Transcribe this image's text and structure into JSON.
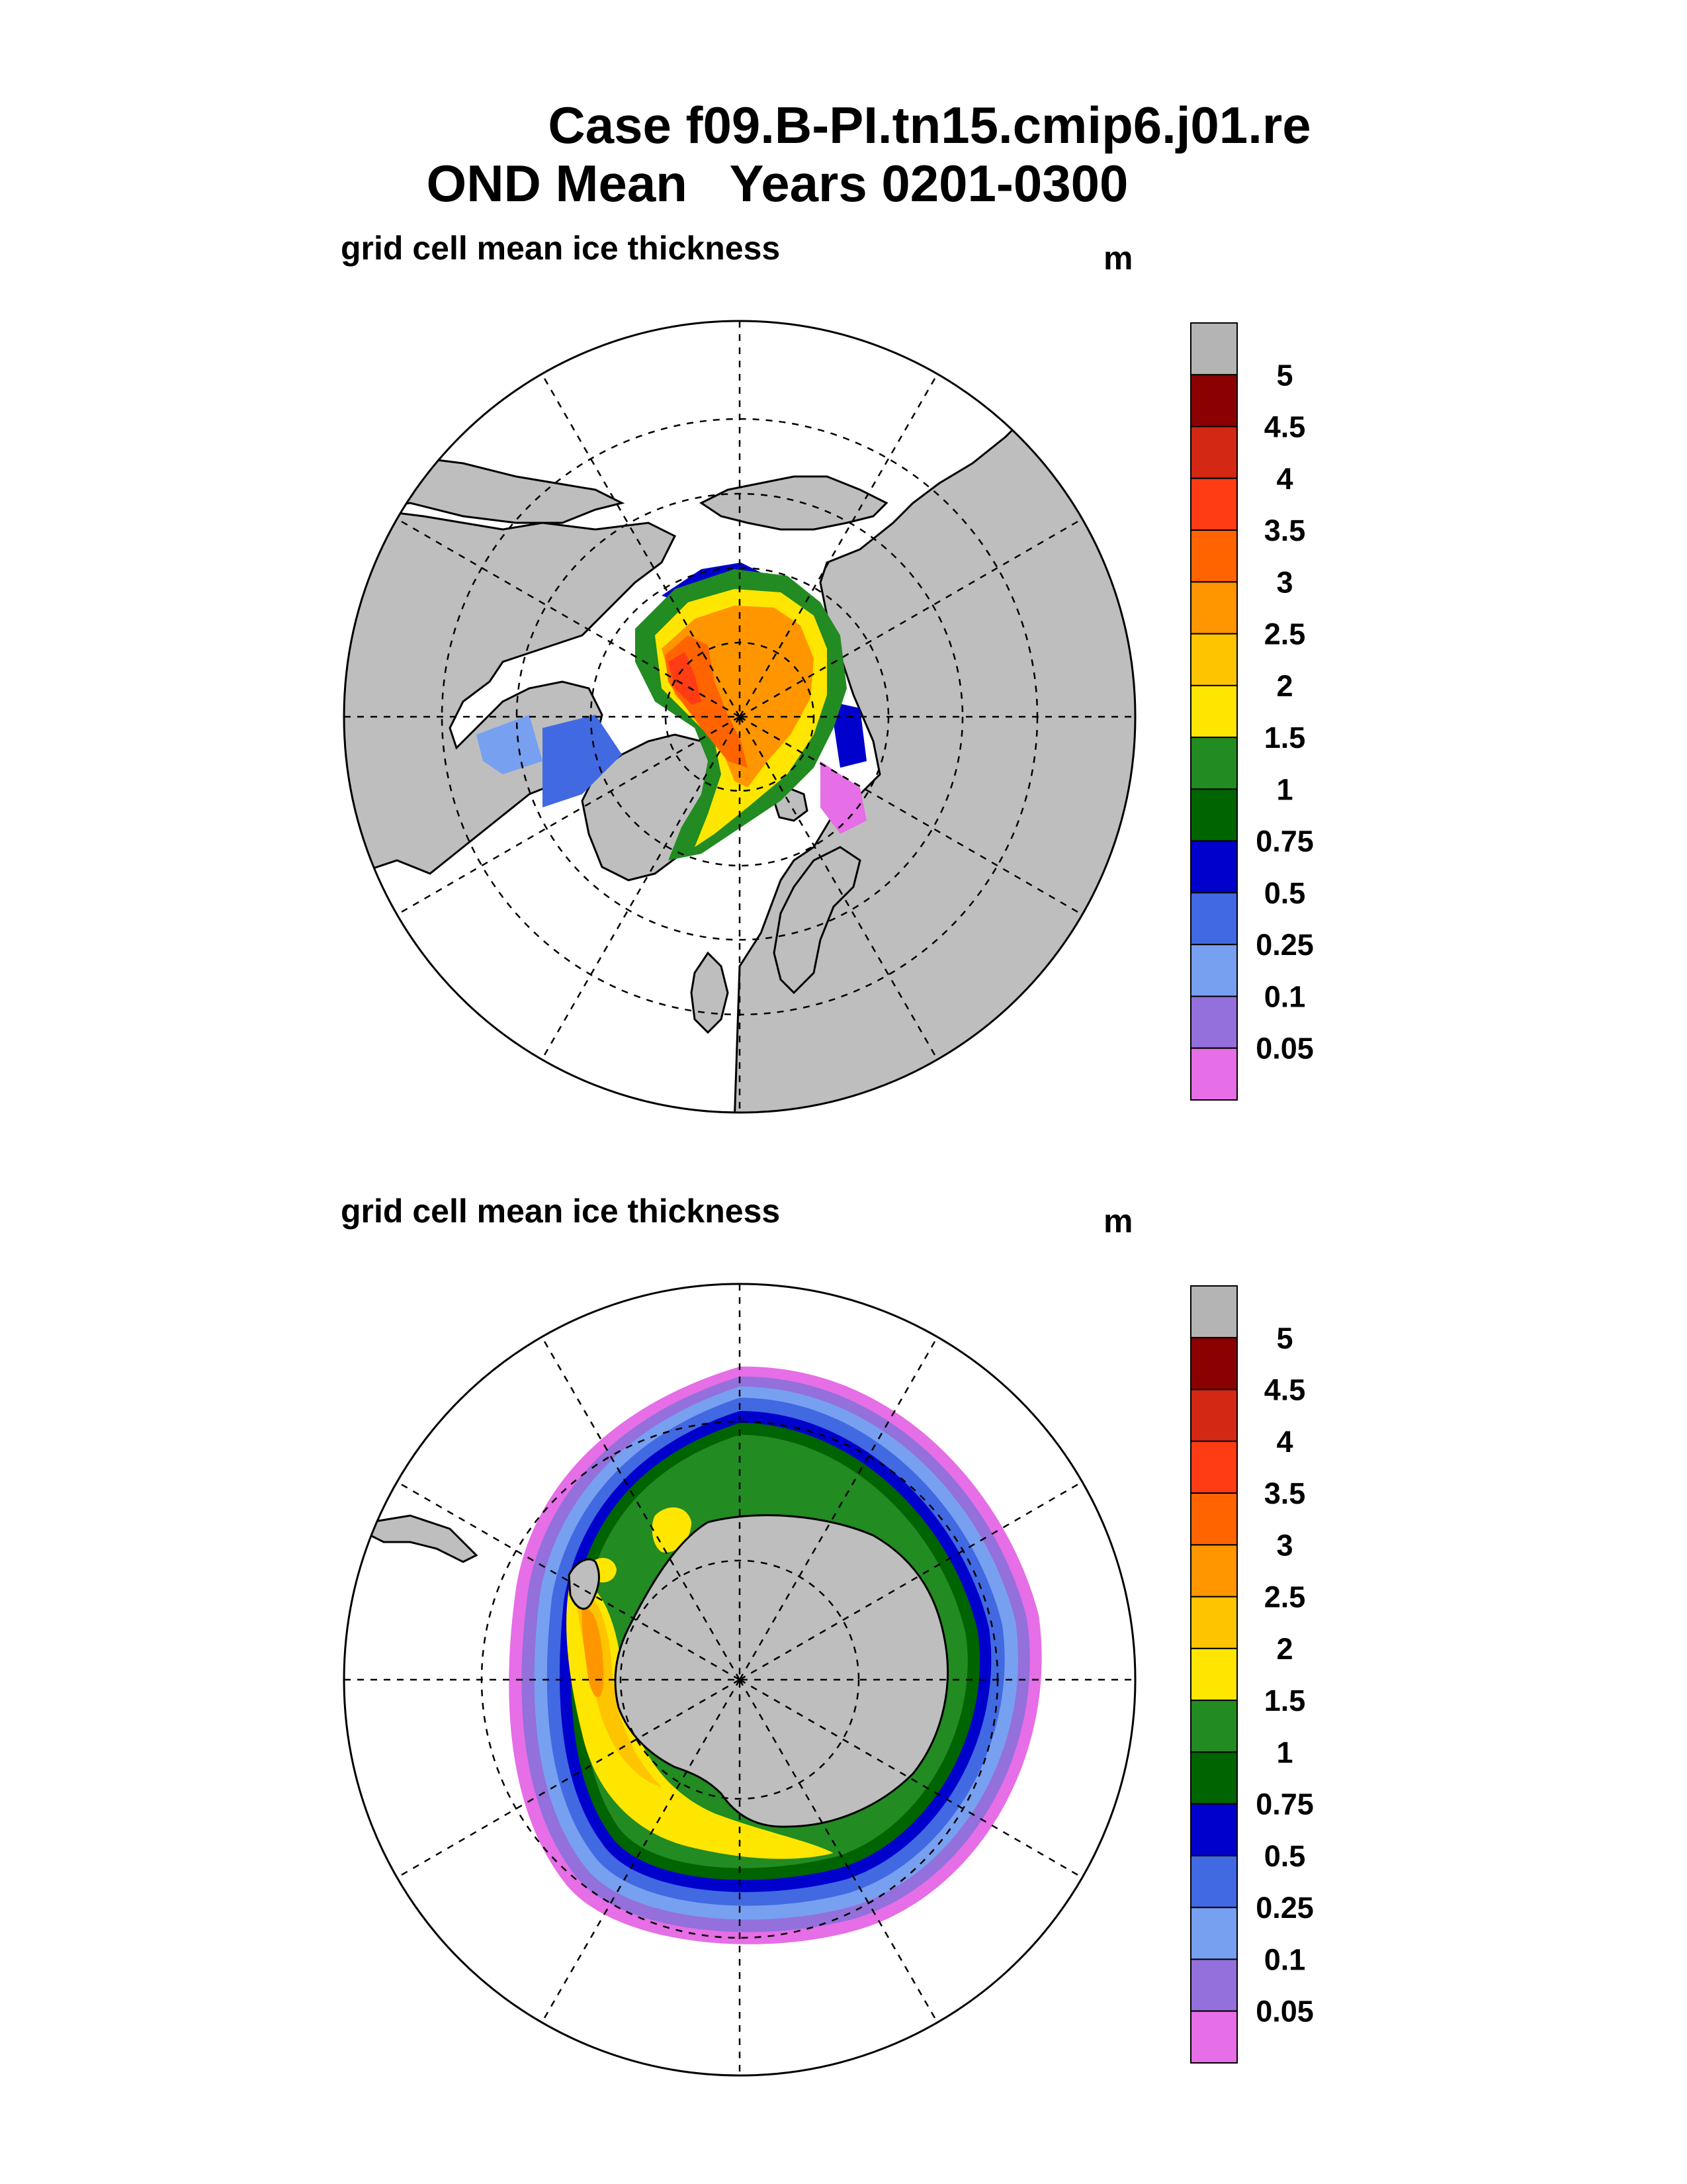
{
  "title_line1": "Case f09.B-PI.tn15.cmip6.j01.re",
  "title_line2": "OND Mean   Years 0201-0300",
  "panels": [
    {
      "id": "north",
      "subtitle": "grid cell mean ice thickness",
      "units": "m"
    },
    {
      "id": "south",
      "subtitle": "grid cell mean ice thickness",
      "units": "m"
    }
  ],
  "colorbar": {
    "labels": [
      "5",
      "4.5",
      "4",
      "3.5",
      "3",
      "2.5",
      "2",
      "1.5",
      "1",
      "0.75",
      "0.5",
      "0.25",
      "0.1",
      "0.05"
    ],
    "colors_top_to_bottom": [
      "#b4b4b4",
      "#8b0000",
      "#d22814",
      "#ff3c14",
      "#ff6400",
      "#ff9600",
      "#ffc400",
      "#ffe600",
      "#228b22",
      "#006400",
      "#0000cd",
      "#4169e1",
      "#78a0f0",
      "#9370db",
      "#e66ee6"
    ]
  },
  "colors": {
    "land": "#bebebe",
    "ocean": "#ffffff"
  }
}
